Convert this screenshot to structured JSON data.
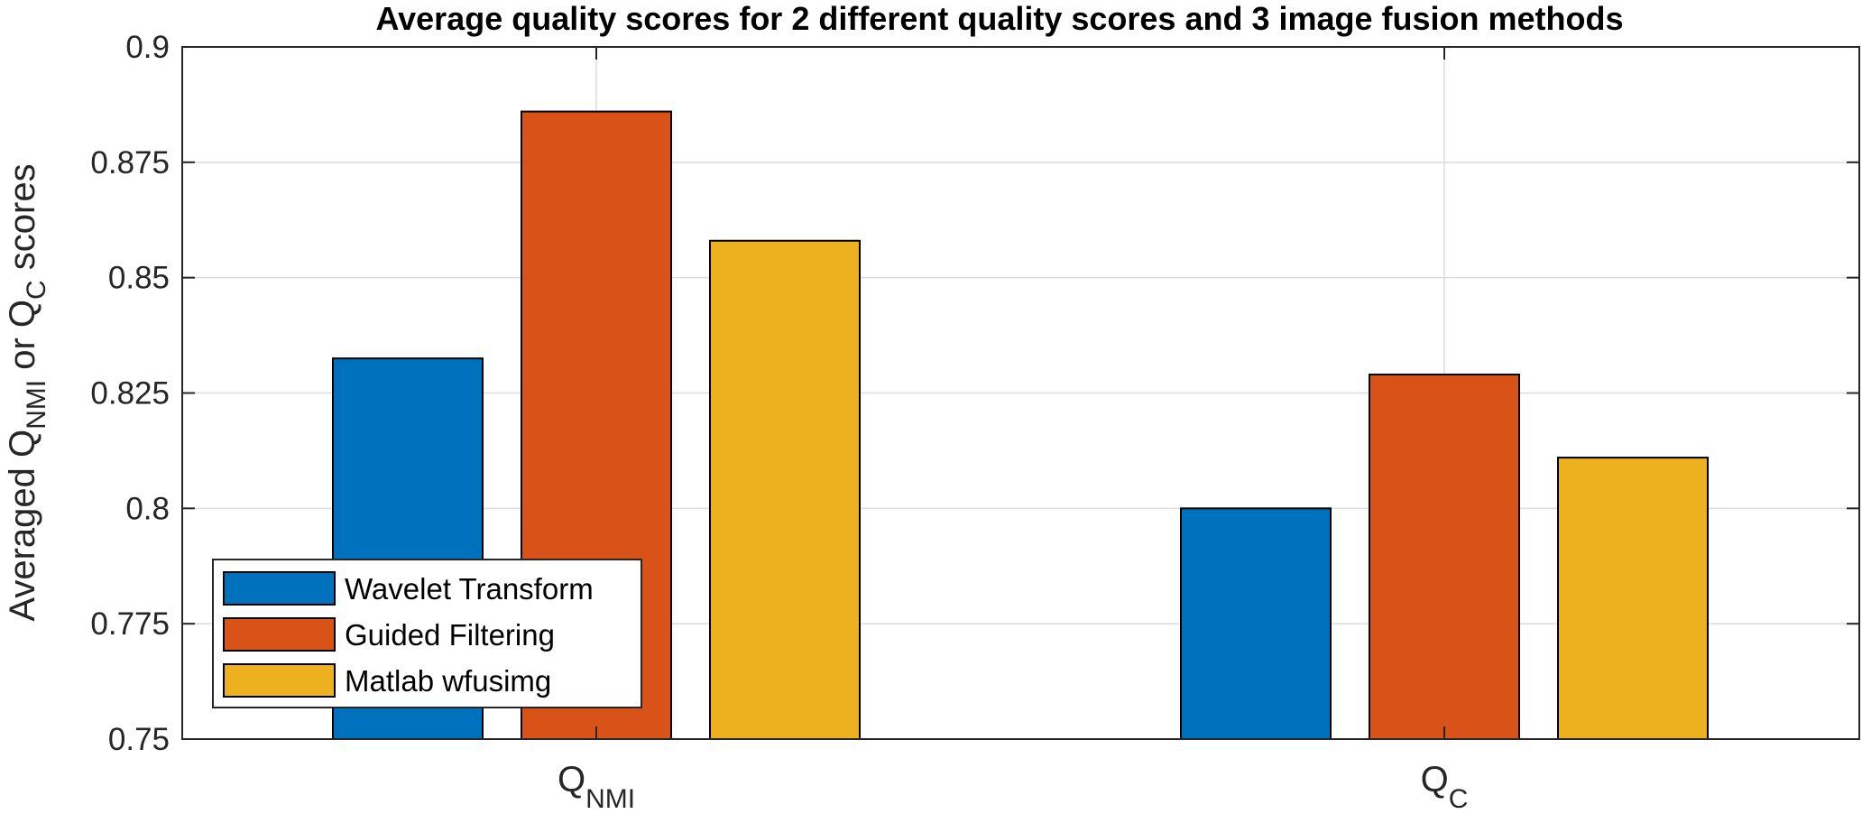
{
  "chart_data": {
    "type": "bar",
    "title": "Average quality scores for 2 different quality scores and 3 image fusion methods",
    "ylabel": {
      "parts": [
        "Averaged Q",
        "NMI",
        " or Q",
        "C",
        " scores"
      ]
    },
    "categories": [
      {
        "base": "Q",
        "sub": "NMI"
      },
      {
        "base": "Q",
        "sub": "C"
      }
    ],
    "ylim": [
      0.75,
      0.9
    ],
    "yticks": [
      "0.75",
      "0.775",
      "0.8",
      "0.825",
      "0.85",
      "0.875",
      "0.9"
    ],
    "grid": true,
    "legend_position": "bottom-left",
    "series": [
      {
        "name": "Wavelet Transform",
        "values": [
          0.8325,
          0.8
        ],
        "color": "#0072BD"
      },
      {
        "name": "Guided Filtering",
        "values": [
          0.886,
          0.829
        ],
        "color": "#D95319"
      },
      {
        "name": "Matlab wfusimg",
        "values": [
          0.858,
          0.811
        ],
        "color": "#EDB120"
      }
    ]
  }
}
